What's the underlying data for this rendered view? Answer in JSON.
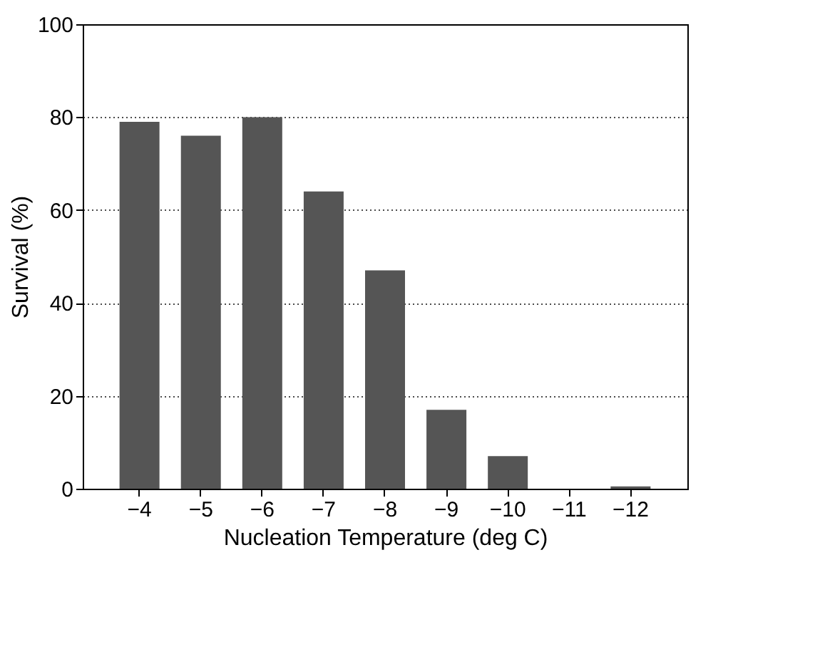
{
  "chart_data": {
    "type": "bar",
    "xlabel": "Nucleation Temperature (deg C)",
    "ylabel": "Survival (%)",
    "categories": [
      "−4",
      "−5",
      "−6",
      "−7",
      "−8",
      "−9",
      "−10",
      "−11",
      "−12"
    ],
    "values": [
      79,
      76,
      80,
      64,
      47,
      17,
      7,
      0,
      0.5
    ],
    "color": "#555555",
    "ylim": [
      0,
      100
    ],
    "yticks": [
      0,
      20,
      40,
      60,
      80,
      100
    ],
    "grid": "y"
  }
}
